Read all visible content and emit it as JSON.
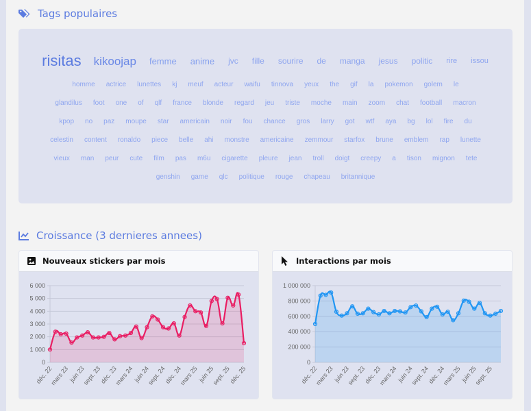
{
  "tags_section": {
    "title": "Tags populaires",
    "icon": "tags-icon",
    "rows": [
      [
        {
          "t": "risitas",
          "s": 22,
          "c": "#5b7be0"
        },
        {
          "t": "kikoojap",
          "s": 17,
          "c": "#6a88e6"
        },
        {
          "t": "femme",
          "s": 13,
          "c": "#85a0ee"
        },
        {
          "t": "anime",
          "s": 13,
          "c": "#85a0ee"
        },
        {
          "t": "jvc",
          "s": 12,
          "c": "#8fa6ef"
        },
        {
          "t": "fille",
          "s": 12,
          "c": "#8fa6ef"
        },
        {
          "t": "sourire",
          "s": 12,
          "c": "#8fa6ef"
        },
        {
          "t": "de",
          "s": 12,
          "c": "#8fa6ef"
        },
        {
          "t": "manga",
          "s": 12,
          "c": "#8fa6ef"
        },
        {
          "t": "jesus",
          "s": 12,
          "c": "#8fa6ef"
        },
        {
          "t": "politic",
          "s": 12,
          "c": "#8fa6ef"
        },
        {
          "t": "rire",
          "s": 11,
          "c": "#8fa6ef"
        },
        {
          "t": "issou",
          "s": 11,
          "c": "#8fa6ef"
        }
      ],
      [
        "homme",
        "actrice",
        "lunettes",
        "kj",
        "meuf",
        "acteur",
        "waifu",
        "tinnova",
        "yeux",
        "the",
        "gif",
        "la",
        "pokemon",
        "golem",
        "le"
      ],
      [
        "glandilus",
        "foot",
        "one",
        "of",
        "qlf",
        "france",
        "blonde",
        "regard",
        "jeu",
        "triste",
        "moche",
        "main",
        "zoom",
        "chat",
        "football",
        "macron"
      ],
      [
        "kpop",
        "no",
        "paz",
        "moupe",
        "star",
        "americain",
        "noir",
        "fou",
        "chance",
        "gros",
        "larry",
        "got",
        "wtf",
        "aya",
        "bg",
        "lol",
        "fire",
        "du"
      ],
      [
        "celestin",
        "content",
        "ronaldo",
        "piece",
        "belle",
        "ahi",
        "monstre",
        "americaine",
        "zemmour",
        "starfox",
        "brune",
        "emblem",
        "rap",
        "lunette"
      ],
      [
        "vieux",
        "man",
        "peur",
        "cute",
        "film",
        "pas",
        "m6u",
        "cigarette",
        "pleure",
        "jean",
        "troll",
        "doigt",
        "creepy",
        "a",
        "tison",
        "mignon",
        "tete"
      ],
      [
        "genshin",
        "game",
        "qlc",
        "politique",
        "rouge",
        "chapeau",
        "britannique"
      ]
    ]
  },
  "growth_section": {
    "title": "Croissance (3 dernieres annees)",
    "icon": "chart-line-icon"
  },
  "chart_data": [
    {
      "type": "area",
      "title": "Nouveaux stickers par mois",
      "icon": "image-icon",
      "color": "#e91e63",
      "x": [
        "déc. 22",
        "janv. 23",
        "févr. 23",
        "mars 23",
        "avr. 23",
        "mai 23",
        "juin 23",
        "juil. 23",
        "août 23",
        "sept. 23",
        "oct. 23",
        "nov. 23",
        "déc. 23",
        "janv. 24",
        "févr. 24",
        "mars 24",
        "avr. 24",
        "mai 24",
        "juin 24",
        "juil. 24",
        "août 24",
        "sept. 24",
        "oct. 24",
        "nov. 24",
        "déc. 24",
        "janv. 25",
        "févr. 25",
        "mars 25",
        "avr. 25",
        "mai 25",
        "juin 25",
        "juil. 25",
        "août 25",
        "sept. 25",
        "oct. 25",
        "nov. 25",
        "déc. 25"
      ],
      "values": [
        1000,
        2400,
        2200,
        2250,
        1550,
        1950,
        2100,
        2350,
        1950,
        1950,
        2000,
        2300,
        1800,
        2050,
        2100,
        2300,
        2800,
        1900,
        2750,
        3600,
        3350,
        2750,
        2650,
        3050,
        2100,
        3550,
        4450,
        4000,
        3900,
        2850,
        4800,
        4950,
        3050,
        5050,
        4450,
        5300,
        1500
      ],
      "yticks": [
        "0",
        "1 000",
        "2 000",
        "3 000",
        "4 000",
        "5 000",
        "6 000"
      ],
      "ylim": [
        0,
        6000
      ],
      "grid": true,
      "xticks": [
        "déc. 22",
        "mars 23",
        "juin 23",
        "sept. 23",
        "déc. 23",
        "mars 24",
        "juin 24",
        "sept. 24",
        "déc. 24",
        "mars 25",
        "juin 25",
        "sept. 25",
        "déc. 25"
      ]
    },
    {
      "type": "area",
      "title": "Interactions par mois",
      "icon": "cursor-icon",
      "color": "#2196f3",
      "x": [
        "déc. 22",
        "janv. 23",
        "févr. 23",
        "mars 23",
        "avr. 23",
        "mai 23",
        "juin 23",
        "juil. 23",
        "août 23",
        "sept. 23",
        "oct. 23",
        "nov. 23",
        "déc. 23",
        "janv. 24",
        "févr. 24",
        "mars 24",
        "avr. 24",
        "mai 24",
        "juin 24",
        "juil. 24",
        "août 24",
        "sept. 24",
        "oct. 24",
        "nov. 24",
        "déc. 24",
        "janv. 25",
        "févr. 25",
        "mars 25",
        "avr. 25",
        "mai 25",
        "juin 25",
        "juil. 25",
        "août 25",
        "sept. 25",
        "oct. 25",
        "nov. 25"
      ],
      "values": [
        500000,
        870000,
        880000,
        910000,
        660000,
        610000,
        640000,
        730000,
        635000,
        640000,
        700000,
        655000,
        625000,
        670000,
        640000,
        670000,
        665000,
        650000,
        720000,
        740000,
        665000,
        590000,
        700000,
        725000,
        625000,
        660000,
        550000,
        640000,
        805000,
        790000,
        700000,
        775000,
        640000,
        610000,
        635000,
        670000
      ],
      "yticks": [
        "0",
        "200 000",
        "400 000",
        "600 000",
        "800 000",
        "1 000 000"
      ],
      "ylim": [
        0,
        1000000
      ],
      "grid": true,
      "xticks": [
        "déc. 22",
        "mars 23",
        "juin 23",
        "sept. 23",
        "déc. 23",
        "mars 24",
        "juin 24",
        "sept. 24",
        "déc. 24",
        "mars 25",
        "juin 25",
        "sept. 25"
      ]
    }
  ]
}
